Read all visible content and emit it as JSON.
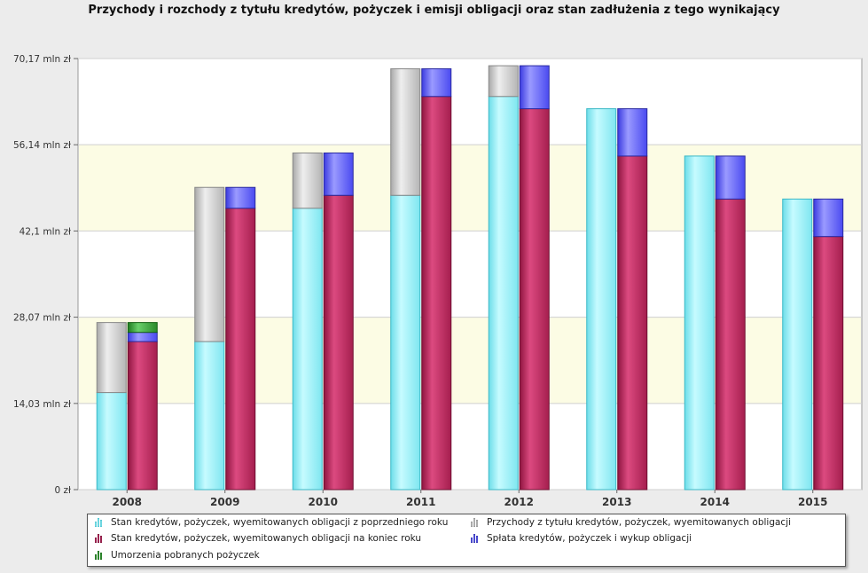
{
  "title": "Przychody i rozchody z tytułu kredytów, pożyczek i emisji obligacji oraz stan zadłużenia z tego wynikający",
  "chart_data": {
    "type": "bar",
    "categories": [
      "2008",
      "2009",
      "2010",
      "2011",
      "2012",
      "2013",
      "2014",
      "2015"
    ],
    "ylim": [
      0,
      70.17
    ],
    "yticks": [
      0,
      14.03,
      28.07,
      42.1,
      56.14,
      70.17
    ],
    "ytick_labels": [
      "0 zł",
      "14,03 mln zł",
      "28,07 mln zł",
      "42,1 mln zł",
      "56,14 mln zł",
      "70,17 mln zł"
    ],
    "series": [
      {
        "name": "Stan kredytów, pożyczek, wyemitowanych obligacji z poprzedniego roku",
        "color": "#9ff3fb",
        "stack": "left",
        "values": [
          15.8,
          24.1,
          45.8,
          47.9,
          64.0,
          62.0,
          54.3,
          47.3
        ]
      },
      {
        "name": "Przychody z tytułu kredytów, pożyczek, wyemitowanych obligacji",
        "color": "#cfcfcf",
        "stack": "left",
        "values": [
          11.4,
          25.1,
          9.0,
          20.6,
          5.0,
          0,
          0,
          0
        ]
      },
      {
        "name": "Stan kredytów, pożyczek, wyemitowanych obligacji na koniec roku",
        "color": "#c8336a",
        "stack": "right",
        "values": [
          24.1,
          45.8,
          47.9,
          64.0,
          62.0,
          54.3,
          47.3,
          41.2
        ]
      },
      {
        "name": "Spłata kredytów, pożyczek i wykup obligacji",
        "color": "#6a6aff",
        "stack": "right",
        "values": [
          1.5,
          3.4,
          6.9,
          4.5,
          7.0,
          7.7,
          7.0,
          6.1
        ]
      },
      {
        "name": "Umorzenia pobranych pożyczek",
        "color": "#3fa83f",
        "stack": "right",
        "values": [
          1.6,
          0,
          0,
          0,
          0,
          0,
          0,
          0
        ]
      }
    ],
    "bands": "alternating-yellow",
    "legend": "bottom"
  }
}
